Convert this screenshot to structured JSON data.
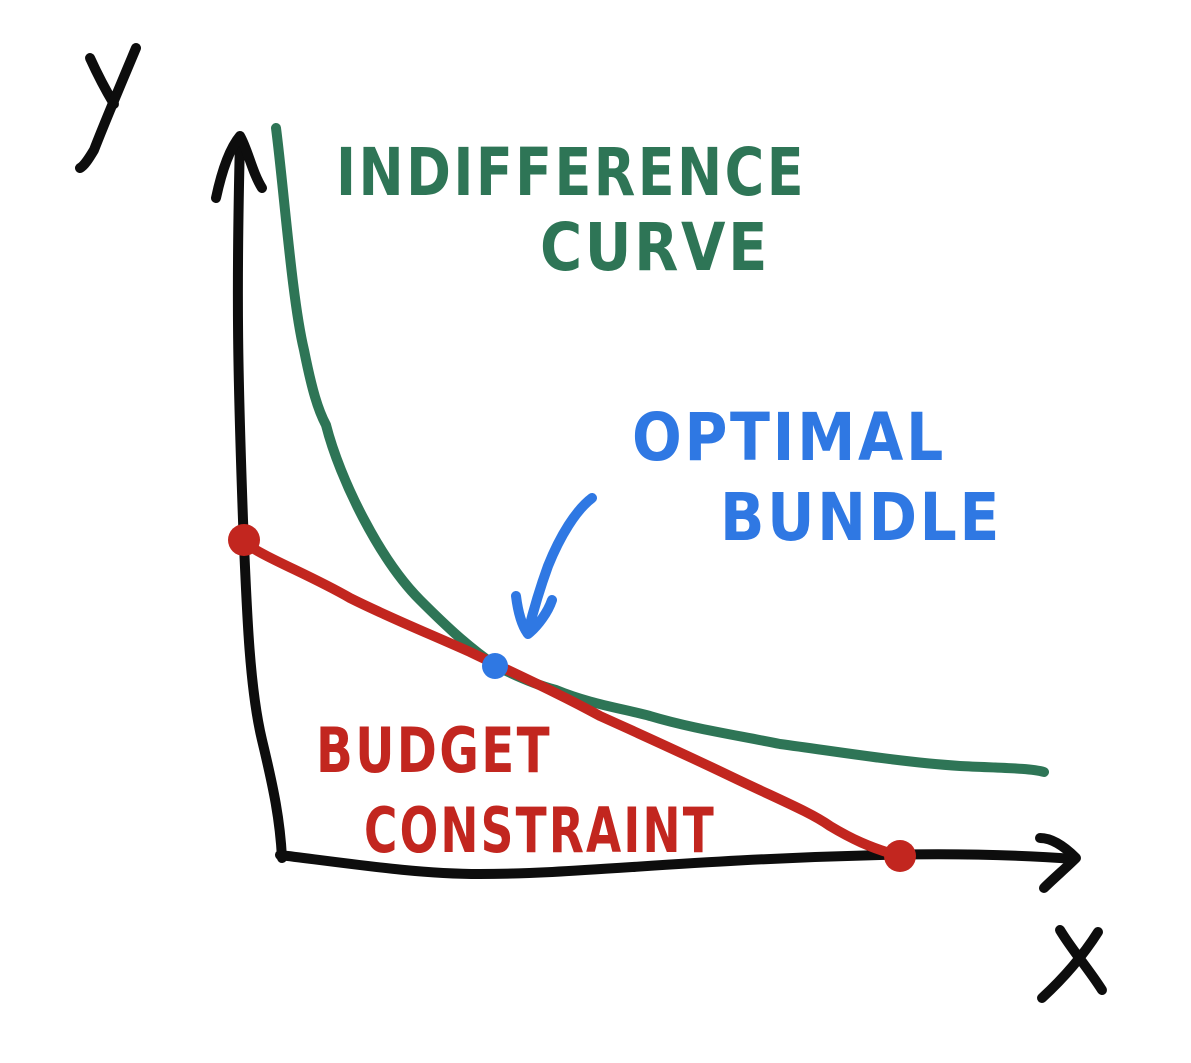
{
  "colors": {
    "axis": "#0d0d0d",
    "indifference": "#2e7556",
    "budget": "#c2261f",
    "optimal": "#2f78e3",
    "background": "#ffffff"
  },
  "axes": {
    "y_label": "Y",
    "x_label": "X"
  },
  "labels": {
    "indifference_line1": "INDIFFERENCE",
    "indifference_line2": "CURVE",
    "optimal_line1": "OPTIMAL",
    "optimal_line2": "BUNDLE",
    "budget_line1": "BUDGET",
    "budget_line2": "CONSTRAINT"
  }
}
